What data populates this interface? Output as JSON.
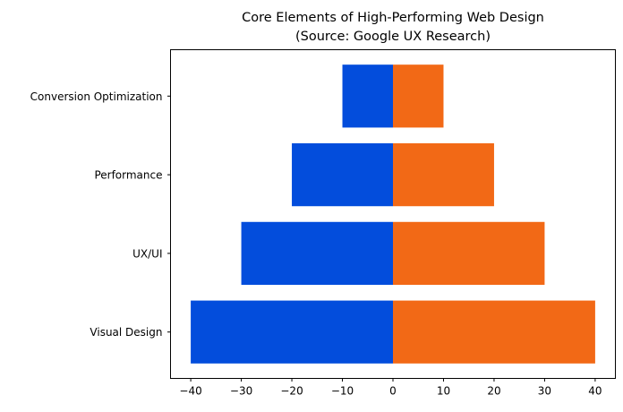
{
  "chart_data": {
    "type": "bar",
    "orientation": "horizontal",
    "title": "Core Elements of High-Performing Web Design",
    "subtitle": "(Source: Google UX Research)",
    "xlabel": "",
    "ylabel": "",
    "categories": [
      "Visual Design",
      "UX/UI",
      "Performance",
      "Conversion Optimization"
    ],
    "series": [
      {
        "values": [
          -40,
          -30,
          -20,
          -10
        ],
        "color": "#034ddc"
      },
      {
        "values": [
          40,
          30,
          20,
          10
        ],
        "color": "#f26916"
      }
    ],
    "xlim": [
      -44,
      44
    ],
    "xticks": [
      -40,
      -30,
      -20,
      -10,
      0,
      10,
      20,
      30,
      40
    ],
    "grid": false
  }
}
